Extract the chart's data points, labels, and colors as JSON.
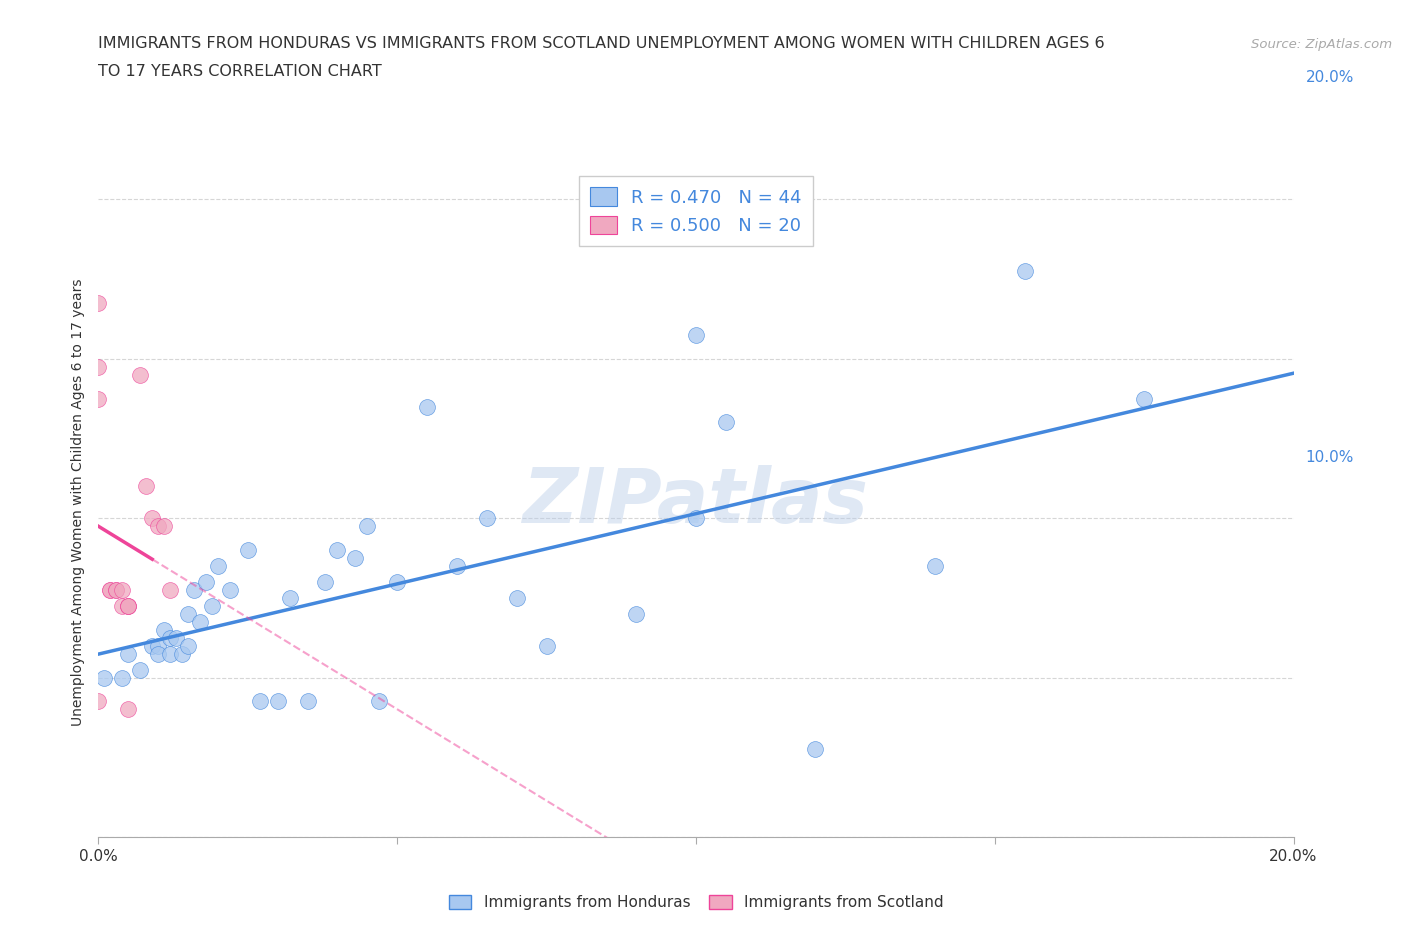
{
  "title_line1": "IMMIGRANTS FROM HONDURAS VS IMMIGRANTS FROM SCOTLAND UNEMPLOYMENT AMONG WOMEN WITH CHILDREN AGES 6",
  "title_line2": "TO 17 YEARS CORRELATION CHART",
  "source": "Source: ZipAtlas.com",
  "ylabel": "Unemployment Among Women with Children Ages 6 to 17 years",
  "xlim": [
    0.0,
    0.2
  ],
  "ylim": [
    0.0,
    0.42
  ],
  "x_ticks": [
    0.0,
    0.05,
    0.1,
    0.15,
    0.2
  ],
  "y_ticks": [
    0.0,
    0.1,
    0.2,
    0.3,
    0.4
  ],
  "grid_color": "#cccccc",
  "background_color": "#ffffff",
  "watermark": "ZIPatlas",
  "R_honduras": 0.47,
  "N_honduras": 44,
  "R_scotland": 0.5,
  "N_scotland": 20,
  "color_honduras": "#a8c8f0",
  "color_scotland": "#f0a8c0",
  "color_trendline_honduras": "#4488dd",
  "color_trendline_scotland": "#ee4499",
  "color_tick_labels": "#4488dd",
  "honduras_x": [
    0.001,
    0.004,
    0.005,
    0.007,
    0.009,
    0.01,
    0.01,
    0.011,
    0.012,
    0.012,
    0.013,
    0.014,
    0.015,
    0.015,
    0.016,
    0.017,
    0.018,
    0.019,
    0.02,
    0.022,
    0.025,
    0.027,
    0.03,
    0.032,
    0.035,
    0.038,
    0.04,
    0.043,
    0.045,
    0.047,
    0.05,
    0.055,
    0.06,
    0.065,
    0.07,
    0.075,
    0.09,
    0.1,
    0.1,
    0.105,
    0.12,
    0.14,
    0.155,
    0.175
  ],
  "honduras_y": [
    0.1,
    0.1,
    0.115,
    0.105,
    0.12,
    0.12,
    0.115,
    0.13,
    0.125,
    0.115,
    0.125,
    0.115,
    0.12,
    0.14,
    0.155,
    0.135,
    0.16,
    0.145,
    0.17,
    0.155,
    0.18,
    0.085,
    0.085,
    0.15,
    0.085,
    0.16,
    0.18,
    0.175,
    0.195,
    0.085,
    0.16,
    0.27,
    0.17,
    0.2,
    0.15,
    0.12,
    0.14,
    0.2,
    0.315,
    0.26,
    0.055,
    0.17,
    0.355,
    0.275
  ],
  "scotland_x": [
    0.0,
    0.0,
    0.0,
    0.0,
    0.002,
    0.002,
    0.003,
    0.003,
    0.004,
    0.004,
    0.005,
    0.005,
    0.005,
    0.005,
    0.007,
    0.008,
    0.009,
    0.01,
    0.011,
    0.012
  ],
  "scotland_y": [
    0.335,
    0.295,
    0.275,
    0.085,
    0.155,
    0.155,
    0.155,
    0.155,
    0.155,
    0.145,
    0.145,
    0.145,
    0.145,
    0.08,
    0.29,
    0.22,
    0.2,
    0.195,
    0.195,
    0.155
  ],
  "trendline_honduras_x0": 0.0,
  "trendline_honduras_x1": 0.2,
  "trendline_scotland_solid_x0": 0.0,
  "trendline_scotland_solid_x1": 0.009,
  "trendline_scotland_dash_x0": 0.009,
  "trendline_scotland_dash_x1": 0.2
}
